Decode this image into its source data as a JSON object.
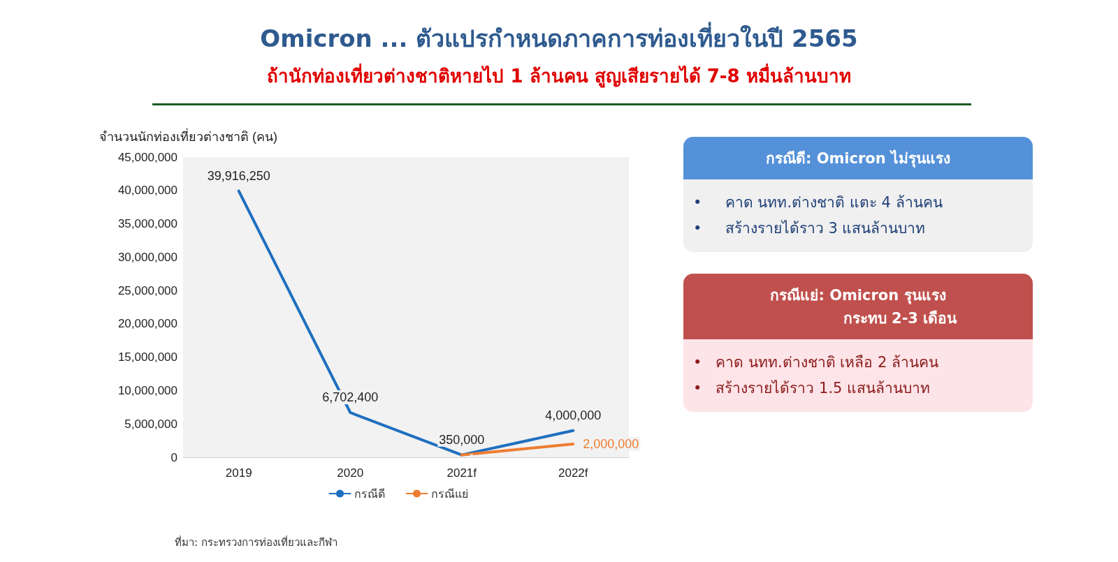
{
  "chart_data": [
    {
      "type": "line",
      "title": "Omicron ... ตัวแปรกำหนดภาคการท่องเที่ยวในปี 2565",
      "subtitle": "ถ้านักท่องเที่ยวต่างชาติหายไป 1 ล้านคน สูญเสียรายได้ 7-8 หมื่นล้านบาท",
      "ylabel": "จำนวนนักท่องเที่ยวต่างชาติ (คน)",
      "categories": [
        "2019",
        "2020",
        "2021f",
        "2022f"
      ],
      "series": [
        {
          "name": "กรณีดี",
          "color": "#1f6fbf",
          "values": [
            39916250,
            6702400,
            350000,
            4000000
          ],
          "value_labels": [
            "39,916,250",
            "6,702,400",
            "350,000",
            "4,000,000"
          ]
        },
        {
          "name": "กรณีแย่",
          "color": "#ed7d31",
          "values": [
            null,
            null,
            350000,
            2000000
          ],
          "value_labels": [
            null,
            null,
            null,
            "2,000,000"
          ]
        }
      ],
      "ylim": [
        0,
        45000000
      ],
      "yticks": [
        0,
        {
          "value": 5000000,
          "label": "5,000,000"
        },
        {
          "value": 10000000,
          "label": "10,000,000"
        },
        {
          "value": 15000000,
          "label": "15,000,000"
        },
        {
          "value": 20000000,
          "label": "20,000,000"
        },
        {
          "value": 25000000,
          "label": "25,000,000"
        },
        {
          "value": 30000000,
          "label": "30,000,000"
        },
        {
          "value": 35000000,
          "label": "35,000,000"
        },
        {
          "value": 40000000,
          "label": "40,000,000"
        },
        {
          "value": 45000000,
          "label": "45,000,000"
        }
      ],
      "grid": false,
      "legend": "bottom",
      "marker": "none",
      "line_style": "solid",
      "annotations": [
        "ที่มา: กระทรวงการท่องเที่ยวและกีฬา"
      ]
    },
    {
      "type": "other",
      "title": "กรณีดี: Omicron ไม่รุนแรง",
      "annotations": [
        "•     คาด นทท.ต่างชาติ แตะ 4 ล้านคน",
        "•     สร้างรายได้ราว 3 แสนล้านบาท"
      ]
    },
    {
      "type": "other",
      "title": "กรณีแย่: Omicron รุนแรง",
      "subtitle": "กระทบ 2-3 เดือน",
      "annotations": [
        "•   คาด นทท.ต่างชาติ เหลือ 2 ล้านคน",
        "•   สร้างรายได้ราว 1.5 แสนล้านบาท"
      ]
    }
  ]
}
